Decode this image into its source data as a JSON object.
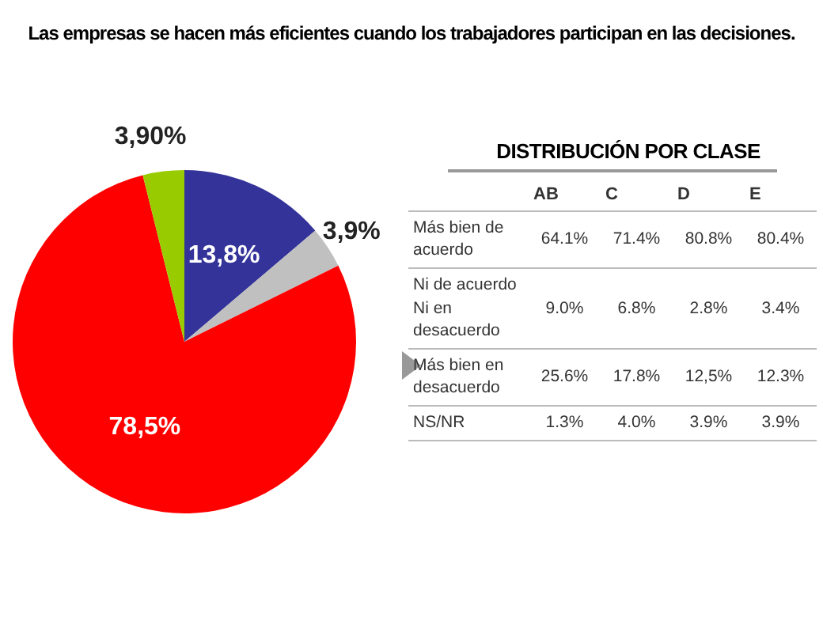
{
  "chart_data": [
    {
      "type": "pie",
      "title": "Las empresas se hacen más eficientes cuando los trabajadores participan en las decisiones.",
      "categories": [
        null,
        null,
        null,
        null
      ],
      "values": [
        13.8,
        3.9,
        78.5,
        3.9
      ],
      "colors": [
        "#333399",
        "#c0c0c0",
        "#ff0000",
        "#99cc00"
      ],
      "value_labels": [
        "13,8%",
        "3,9%",
        "78,5%",
        "3,90%"
      ]
    },
    {
      "type": "heatmap",
      "title": "DISTRIBUCIÓN POR CLASE",
      "categories": [
        "AB",
        "C",
        "D",
        "E"
      ],
      "y_categories": [
        "Más bien de acuerdo",
        "Ni de acuerdo Ni en desacuerdo",
        "Más bien en desacuerdo",
        "NS/NR"
      ],
      "cells": [
        [
          64.1,
          71.4,
          80.8,
          80.4
        ],
        [
          9.0,
          6.8,
          2.8,
          3.4
        ],
        [
          25.6,
          17.8,
          12.5,
          12.3
        ],
        [
          1.3,
          4.0,
          3.9,
          3.9
        ]
      ],
      "cell_labels": [
        [
          "64.1%",
          "71.4%",
          "80.8%",
          "80.4%"
        ],
        [
          "9.0%",
          "6.8%",
          "2.8%",
          "3.4%"
        ],
        [
          "25.6%",
          "17.8%",
          "12,5%",
          "12.3%"
        ],
        [
          "1.3%",
          "4.0%",
          "3.9%",
          "3.9%"
        ]
      ]
    }
  ]
}
